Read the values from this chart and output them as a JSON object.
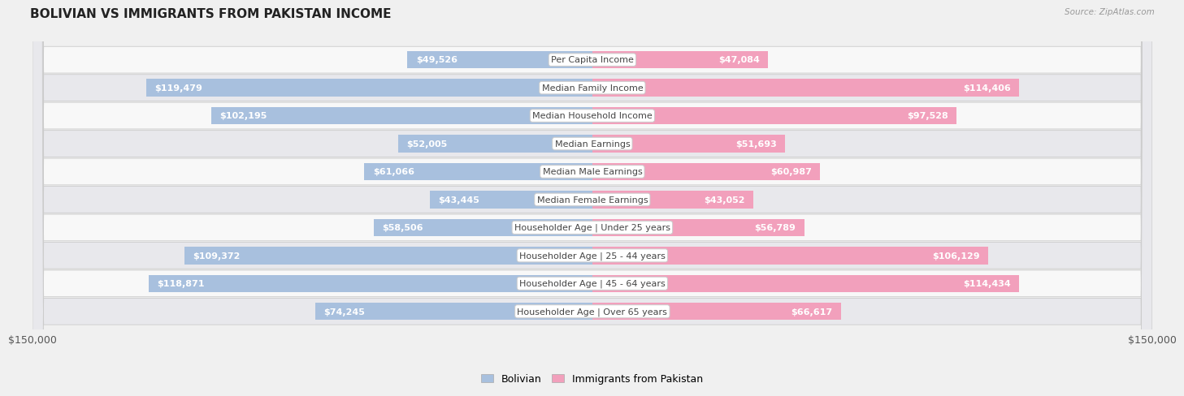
{
  "title": "BOLIVIAN VS IMMIGRANTS FROM PAKISTAN INCOME",
  "source": "Source: ZipAtlas.com",
  "categories": [
    "Per Capita Income",
    "Median Family Income",
    "Median Household Income",
    "Median Earnings",
    "Median Male Earnings",
    "Median Female Earnings",
    "Householder Age | Under 25 years",
    "Householder Age | 25 - 44 years",
    "Householder Age | 45 - 64 years",
    "Householder Age | Over 65 years"
  ],
  "bolivian_values": [
    49526,
    119479,
    102195,
    52005,
    61066,
    43445,
    58506,
    109372,
    118871,
    74245
  ],
  "pakistan_values": [
    47084,
    114406,
    97528,
    51693,
    60987,
    43052,
    56789,
    106129,
    114434,
    66617
  ],
  "bolivian_labels": [
    "$49,526",
    "$119,479",
    "$102,195",
    "$52,005",
    "$61,066",
    "$43,445",
    "$58,506",
    "$109,372",
    "$118,871",
    "$74,245"
  ],
  "pakistan_labels": [
    "$47,084",
    "$114,406",
    "$97,528",
    "$51,693",
    "$60,987",
    "$43,052",
    "$56,789",
    "$106,129",
    "$114,434",
    "$66,617"
  ],
  "bolivian_color": "#a8c0de",
  "pakistan_color": "#f2a0bc",
  "inside_label_threshold": 0.28,
  "max_value": 150000,
  "background_color": "#f0f0f0",
  "row_bg_even": "#f8f8f8",
  "row_bg_odd": "#e8e8ec",
  "legend_bolivian": "Bolivian",
  "legend_pakistan": "Immigrants from Pakistan",
  "xlabel_left": "$150,000",
  "xlabel_right": "$150,000",
  "title_fontsize": 11,
  "label_fontsize": 8,
  "category_fontsize": 8
}
